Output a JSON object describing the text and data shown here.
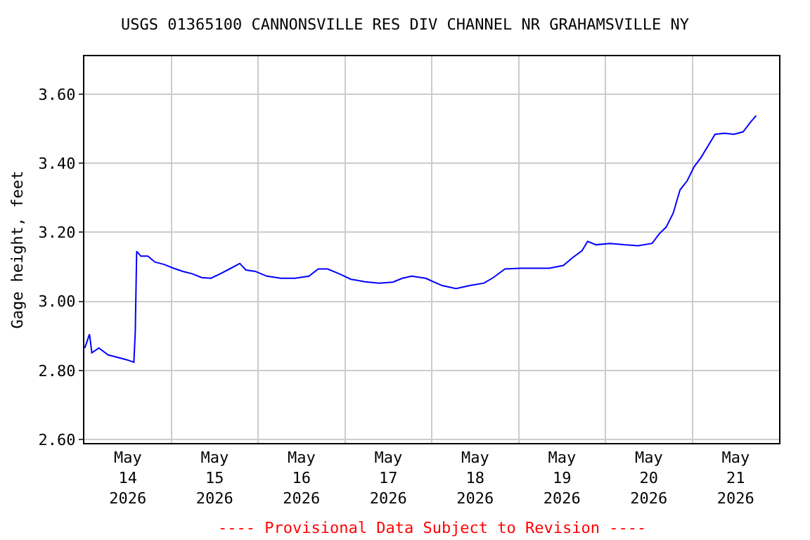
{
  "chart_data": {
    "type": "line",
    "title": "USGS 01365100 CANNONSVILLE RES DIV CHANNEL NR GRAHAMSVILLE NY",
    "ylabel": "Gage height, feet",
    "annotations": [
      "---- Provisional Data Subject to Revision ----"
    ],
    "x": [
      "2026-05-14T00:07",
      "2026-05-14T01:25",
      "2026-05-14T02:04",
      "2026-05-14T04:00",
      "2026-05-14T06:35",
      "2026-05-14T09:10",
      "2026-05-14T11:44",
      "2026-05-14T13:41",
      "2026-05-14T14:04",
      "2026-05-14T14:27",
      "2026-05-14T15:37",
      "2026-05-14T17:33",
      "2026-05-14T19:29",
      "2026-05-14T22:03",
      "2026-05-15T00:39",
      "2026-05-15T03:13",
      "2026-05-15T05:48",
      "2026-05-15T08:23",
      "2026-05-15T10:58",
      "2026-05-15T13:34",
      "2026-05-15T16:08",
      "2026-05-15T18:58",
      "2026-05-15T20:38",
      "2026-05-15T23:14",
      "2026-05-16T02:27",
      "2026-05-16T06:19",
      "2026-05-16T10:12",
      "2026-05-16T14:04",
      "2026-05-16T16:39",
      "2026-05-16T19:13",
      "2026-05-16T22:26",
      "2026-05-17T01:41",
      "2026-05-17T05:33",
      "2026-05-17T09:24",
      "2026-05-17T13:18",
      "2026-05-17T15:52",
      "2026-05-17T18:27",
      "2026-05-17T22:19",
      "2026-05-17T22:58",
      "2026-05-18T02:50",
      "2026-05-18T06:43",
      "2026-05-18T10:35",
      "2026-05-18T14:27",
      "2026-05-18T17:02",
      "2026-05-18T20:15",
      "2026-05-19T00:46",
      "2026-05-19T04:39",
      "2026-05-19T08:31",
      "2026-05-19T12:23",
      "2026-05-19T14:59",
      "2026-05-19T17:33",
      "2026-05-19T19:06",
      "2026-05-19T21:24",
      "2026-05-20T01:18",
      "2026-05-20T05:10",
      "2026-05-20T09:01",
      "2026-05-20T12:55",
      "2026-05-20T14:50",
      "2026-05-20T16:47",
      "2026-05-20T18:43",
      "2026-05-20T20:38",
      "2026-05-20T22:35",
      "2026-05-21T00:32",
      "2026-05-21T02:27",
      "2026-05-21T04:24",
      "2026-05-21T06:19",
      "2026-05-21T08:54",
      "2026-05-21T11:28",
      "2026-05-21T14:04",
      "2026-05-21T16:00",
      "2026-05-21T17:41"
    ],
    "series": [
      {
        "color": "#0000ff",
        "values": [
          2.865,
          2.905,
          2.851,
          2.865,
          2.845,
          2.838,
          2.831,
          2.824,
          2.912,
          3.145,
          3.131,
          3.131,
          3.114,
          3.107,
          3.096,
          3.087,
          3.08,
          3.069,
          3.067,
          3.08,
          3.094,
          3.11,
          3.091,
          3.087,
          3.073,
          3.067,
          3.067,
          3.073,
          3.094,
          3.094,
          3.08,
          3.064,
          3.057,
          3.053,
          3.056,
          3.067,
          3.073,
          3.067,
          3.064,
          3.046,
          3.037,
          3.046,
          3.053,
          3.069,
          3.094,
          3.096,
          3.096,
          3.096,
          3.104,
          3.127,
          3.147,
          3.174,
          3.164,
          3.168,
          3.164,
          3.161,
          3.168,
          3.195,
          3.215,
          3.255,
          3.323,
          3.349,
          3.39,
          3.417,
          3.451,
          3.484,
          3.487,
          3.484,
          3.491,
          3.518,
          3.538
        ]
      }
    ],
    "xlim": [
      "2026-05-14",
      "2026-05-22"
    ],
    "xticks": [
      {
        "value": "2026-05-14T12:00",
        "label": "May\n14\n2026"
      },
      {
        "value": "2026-05-15T12:00",
        "label": "May\n15\n2026"
      },
      {
        "value": "2026-05-16T12:00",
        "label": "May\n16\n2026"
      },
      {
        "value": "2026-05-17T12:00",
        "label": "May\n17\n2026"
      },
      {
        "value": "2026-05-18T12:00",
        "label": "May\n18\n2026"
      },
      {
        "value": "2026-05-19T12:00",
        "label": "May\n19\n2026"
      },
      {
        "value": "2026-05-20T12:00",
        "label": "May\n20\n2026"
      },
      {
        "value": "2026-05-21T12:00",
        "label": "May\n21\n2026"
      },
      {
        "value": "2026-05-15",
        "label": null
      },
      {
        "value": "2026-05-16",
        "label": null
      },
      {
        "value": "2026-05-17",
        "label": null
      },
      {
        "value": "2026-05-18",
        "label": null
      },
      {
        "value": "2026-05-19",
        "label": null
      },
      {
        "value": "2026-05-20",
        "label": null
      },
      {
        "value": "2026-05-21",
        "label": null
      }
    ],
    "ylim": [
      2.59,
      3.71
    ],
    "yticks": [
      {
        "value": 2.6,
        "label": "2.60"
      },
      {
        "value": 2.8,
        "label": "2.80"
      },
      {
        "value": 3.0,
        "label": "3.00"
      },
      {
        "value": 3.2,
        "label": "3.20"
      },
      {
        "value": 3.4,
        "label": "3.40"
      },
      {
        "value": 3.6,
        "label": "3.60"
      }
    ],
    "grid": true,
    "line_style": "solid",
    "marker": "none"
  }
}
